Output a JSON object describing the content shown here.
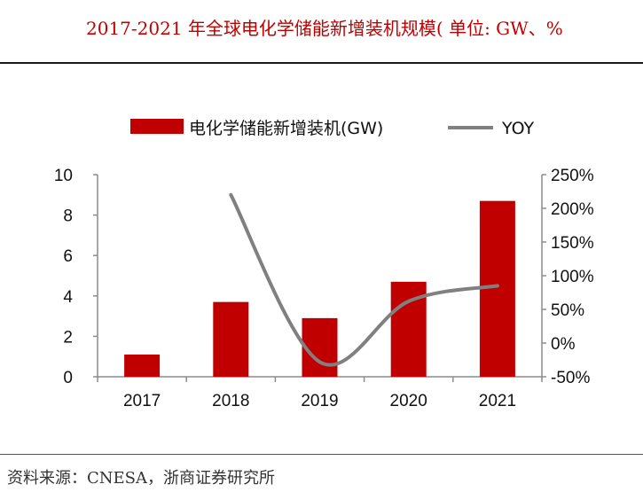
{
  "header": {
    "title": "2017-2021 年全球电化学储能新增装机规模( 单位: GW、%"
  },
  "footer": {
    "source": "资料来源：CNESA，浙商证券研究所"
  },
  "chart_data": {
    "type": "bar",
    "categories": [
      "2017",
      "2018",
      "2019",
      "2020",
      "2021"
    ],
    "series": [
      {
        "name": "电化学储能新增装机(GW)",
        "kind": "bar",
        "axis": "left",
        "color": "#c00000",
        "values": [
          1.1,
          3.7,
          2.9,
          4.7,
          8.7
        ]
      },
      {
        "name": "YOY",
        "kind": "line",
        "axis": "right",
        "color": "#808080",
        "values": [
          null,
          220,
          -28,
          62,
          85
        ]
      }
    ],
    "y_left": {
      "min": 0,
      "max": 10,
      "ticks": [
        "0",
        "2",
        "4",
        "6",
        "8",
        "10"
      ],
      "tick_values": [
        0,
        2,
        4,
        6,
        8,
        10
      ]
    },
    "y_right": {
      "min": -50,
      "max": 250,
      "ticks": [
        "-50%",
        "0%",
        "50%",
        "100%",
        "150%",
        "200%",
        "250%"
      ],
      "tick_values": [
        -50,
        0,
        50,
        100,
        150,
        200,
        250
      ]
    },
    "legend": {
      "position": "top"
    }
  }
}
